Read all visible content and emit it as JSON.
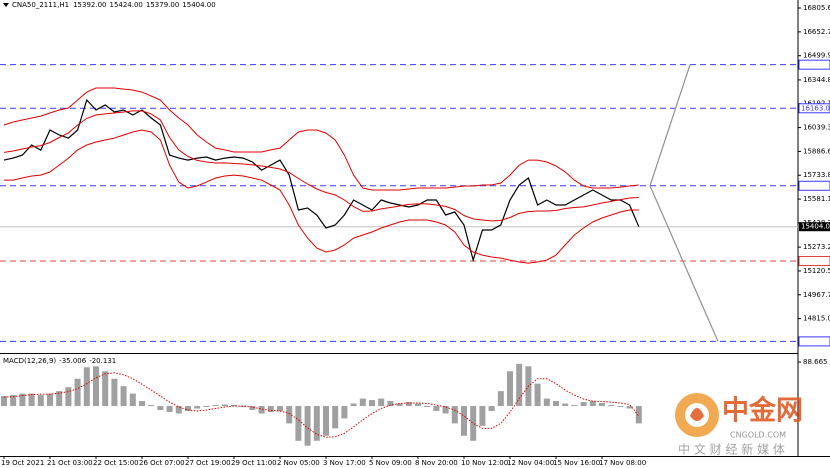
{
  "chart_data": [
    {
      "type": "line",
      "title": "CNA50_2111,H1",
      "ohlc": [
        {
          "value": 15392,
          "label": "15392.00"
        },
        {
          "value": 15424,
          "label": "15424.00"
        },
        {
          "value": 15379,
          "label": "15379.00"
        },
        {
          "value": 15404,
          "label": "15404.00"
        }
      ],
      "categories": [
        "19 Oct 2021",
        null,
        null,
        null,
        null,
        "21 Oct 03:00",
        null,
        null,
        null,
        null,
        "22 Oct 15:00",
        null,
        null,
        null,
        null,
        "26 Oct 07:00",
        null,
        null,
        null,
        null,
        "27 Oct 19:00",
        null,
        null,
        null,
        null,
        "29 Oct 11:00",
        null,
        null,
        null,
        null,
        "2 Nov 05:00",
        null,
        null,
        null,
        null,
        "3 Nov 17:00",
        null,
        null,
        null,
        null,
        "5 Nov 09:00",
        null,
        null,
        null,
        null,
        "8 Nov 20:00",
        null,
        null,
        null,
        null,
        "10 Nov 12:00",
        null,
        null,
        null,
        null,
        "12 Nov 04:00",
        null,
        null,
        null,
        null,
        "15 Nov 16:00",
        null,
        null,
        null,
        null,
        "17 Nov 08:00",
        null,
        null,
        null,
        null
      ],
      "series": [
        {
          "color": "#000000",
          "values": [
            15831,
            15844,
            15863,
            15928,
            15895,
            16024,
            15992,
            15972,
            16024,
            16216,
            16152,
            16184,
            16139,
            16152,
            16120,
            16152,
            16101,
            16056,
            15863,
            15844,
            15831,
            15844,
            15851,
            15831,
            15844,
            15851,
            15844,
            15819,
            15767,
            15799,
            15831,
            15735,
            15511,
            15524,
            15479,
            15396,
            15415,
            15479,
            15575,
            15543,
            15511,
            15575,
            15556,
            15543,
            15530,
            15543,
            15575,
            15575,
            15479,
            15498,
            15415,
            15190,
            15383,
            15383,
            15415,
            15575,
            15671,
            15716,
            15543,
            15575,
            15543,
            15543,
            15575,
            15607,
            15639,
            15607,
            15575,
            15575,
            15543,
            15404
          ]
        },
        {
          "color": "#e00000",
          "values": [
            16056,
            16075,
            16088,
            16101,
            16113,
            16133,
            16152,
            16165,
            16216,
            16267,
            16293,
            16293,
            16293,
            16286,
            16280,
            16267,
            16242,
            16216,
            16152,
            16101,
            16056,
            15992,
            15947,
            15908,
            15896,
            15883,
            15883,
            15883,
            15883,
            15896,
            15908,
            15960,
            16011,
            16024,
            16024,
            16004,
            15960,
            15863,
            15735,
            15652,
            15639,
            15639,
            15639,
            15639,
            15646,
            15652,
            15652,
            15652,
            15652,
            15658,
            15665,
            15665,
            15671,
            15671,
            15684,
            15735,
            15799,
            15831,
            15831,
            15819,
            15793,
            15755,
            15703,
            15665,
            15652,
            15652,
            15652,
            15658,
            15665,
            15671
          ]
        },
        {
          "color": "#e00000",
          "values": [
            15880,
            15889,
            15902,
            15915,
            15924,
            15944,
            15976,
            16005,
            16056,
            16098,
            16120,
            16127,
            16133,
            16139,
            16146,
            16146,
            16127,
            16088,
            15976,
            15896,
            15854,
            15829,
            15819,
            15812,
            15813,
            15809,
            15806,
            15800,
            15793,
            15784,
            15774,
            15752,
            15713,
            15678,
            15646,
            15623,
            15608,
            15575,
            15533,
            15502,
            15505,
            15518,
            15527,
            15537,
            15547,
            15550,
            15550,
            15543,
            15534,
            15514,
            15476,
            15454,
            15447,
            15441,
            15444,
            15463,
            15489,
            15501,
            15505,
            15505,
            15508,
            15521,
            15527,
            15531,
            15543,
            15556,
            15566,
            15578,
            15588,
            15591
          ]
        },
        {
          "color": "#e00000",
          "values": [
            15703,
            15703,
            15716,
            15729,
            15735,
            15755,
            15799,
            15844,
            15896,
            15928,
            15947,
            15960,
            15972,
            15992,
            16011,
            16024,
            16011,
            15960,
            15799,
            15690,
            15652,
            15665,
            15690,
            15716,
            15729,
            15735,
            15729,
            15716,
            15703,
            15671,
            15639,
            15543,
            15415,
            15331,
            15267,
            15242,
            15255,
            15287,
            15331,
            15351,
            15370,
            15396,
            15415,
            15434,
            15447,
            15447,
            15447,
            15434,
            15415,
            15370,
            15287,
            15242,
            15222,
            15210,
            15203,
            15190,
            15178,
            15171,
            15178,
            15190,
            15222,
            15287,
            15351,
            15396,
            15434,
            15460,
            15479,
            15498,
            15511,
            15511
          ]
        }
      ],
      "ylim": [
        14601,
        16857
      ],
      "yticks": [
        16805.65,
        {
          "value": 16652.7,
          "label": "16652.70"
        },
        16499.95,
        16344.85,
        {
          "value": 16192.1,
          "label": "16192.10"
        },
        16039.35,
        {
          "value": 15886.6,
          "label": "15886.60"
        },
        15733.85,
        {
          "value": 15581.1,
          "label": "15581.10"
        },
        15428.35,
        15273.25,
        {
          "value": 15120.5,
          "label": "15120.50"
        },
        14967.75,
        {
          "value": 14815,
          "label": "14815.00"
        }
      ],
      "levels": [
        {
          "value": 16442.48,
          "color": "#3a3aff"
        },
        {
          "value": 16163,
          "label": "16163.00",
          "color": "#3a3aff"
        },
        {
          "value": 15666.41,
          "color": "#3a3aff"
        },
        {
          "value": 15184.26,
          "color": "#e04040"
        },
        {
          "value": 14669.06,
          "color": "#3a3aff"
        }
      ],
      "last": {
        "value": 15404,
        "label": "15404.00"
      }
    },
    {
      "type": "bar",
      "title": "MACD(12,26,9)",
      "current": [
        -35.006,
        -20.131
      ],
      "series": [
        {
          "type": "bar",
          "color": "#a0a0a0",
          "values": [
            20,
            22,
            25,
            25,
            22,
            25,
            30,
            38,
            55,
            78,
            80,
            70,
            55,
            40,
            25,
            10,
            2,
            -8,
            -12,
            -15,
            -10,
            -5,
            -2,
            2,
            3,
            2,
            -2,
            -8,
            -15,
            -12,
            -10,
            -35,
            -70,
            -80,
            -70,
            -60,
            -45,
            -25,
            5,
            15,
            12,
            15,
            10,
            5,
            8,
            5,
            -2,
            -10,
            -15,
            -35,
            -60,
            -70,
            -40,
            -10,
            30,
            70,
            85,
            80,
            45,
            15,
            10,
            5,
            2,
            8,
            10,
            6,
            2,
            -2,
            -5,
            -35
          ]
        },
        {
          "type": "line",
          "color": "#e00000",
          "values": [
            18,
            19,
            21,
            23,
            24,
            24,
            26,
            29,
            35,
            45,
            57,
            65,
            67,
            63,
            55,
            44,
            32,
            20,
            8,
            -2,
            -8,
            -10,
            -8,
            -5,
            -2,
            0,
            0,
            -2,
            -6,
            -9,
            -10,
            -15,
            -28,
            -44,
            -57,
            -63,
            -62,
            -55,
            -42,
            -28,
            -15,
            -5,
            2,
            5,
            6,
            6,
            5,
            2,
            -2,
            -8,
            -20,
            -35,
            -45,
            -45,
            -35,
            -12,
            15,
            40,
            55,
            55,
            45,
            32,
            22,
            14,
            10,
            9,
            8,
            6,
            3,
            -20
          ]
        }
      ],
      "ylim": [
        -100.7,
        100.8
      ],
      "yticks": [
        88.665
      ]
    }
  ],
  "watermark": {
    "logo": "中金网",
    "site": "CNGOLD.COM",
    "slogan": "中 文 财 经 新 媒 体"
  }
}
